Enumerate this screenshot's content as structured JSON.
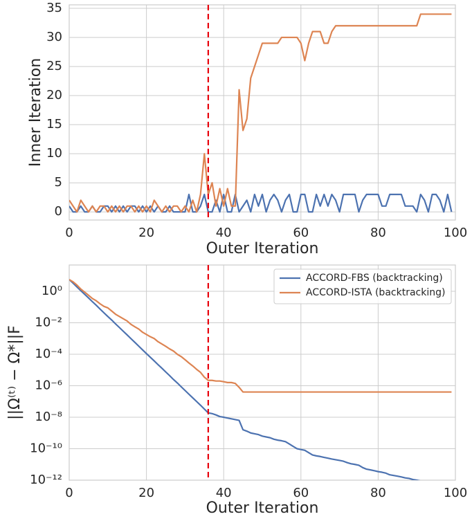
{
  "chart_data": [
    {
      "type": "line",
      "xlabel": "Outer Iteration",
      "ylabel": "Inner Iteration",
      "xlim": [
        0,
        100
      ],
      "ylim": [
        -1.4,
        35.6
      ],
      "xticks": [
        0,
        20,
        40,
        60,
        80,
        100
      ],
      "yticks": [
        0,
        5,
        10,
        15,
        20,
        25,
        30,
        35
      ],
      "grid": true,
      "vline": {
        "x": 36,
        "color": "#e8000b"
      },
      "x": [
        0,
        1,
        2,
        3,
        4,
        5,
        6,
        7,
        8,
        9,
        10,
        11,
        12,
        13,
        14,
        15,
        16,
        17,
        18,
        19,
        20,
        21,
        22,
        23,
        24,
        25,
        26,
        27,
        28,
        29,
        30,
        31,
        32,
        33,
        34,
        35,
        36,
        37,
        38,
        39,
        40,
        41,
        42,
        43,
        44,
        45,
        46,
        47,
        48,
        49,
        50,
        51,
        52,
        53,
        54,
        55,
        56,
        57,
        58,
        59,
        60,
        61,
        62,
        63,
        64,
        65,
        66,
        67,
        68,
        69,
        70,
        71,
        72,
        73,
        74,
        75,
        76,
        77,
        78,
        79,
        80,
        81,
        82,
        83,
        84,
        85,
        86,
        87,
        88,
        89,
        90,
        91,
        92,
        93,
        94,
        95,
        96,
        97,
        98,
        99
      ],
      "series": [
        {
          "color": "#4c72b0",
          "values": [
            1,
            0,
            0,
            1,
            0,
            0,
            1,
            0,
            0,
            1,
            1,
            0,
            1,
            0,
            1,
            0,
            1,
            1,
            0,
            1,
            0,
            1,
            0,
            1,
            0,
            0,
            1,
            0,
            0,
            0,
            0,
            3,
            0,
            0,
            1,
            3,
            0,
            0,
            2,
            0,
            3,
            0,
            0,
            3,
            0,
            1,
            2,
            0,
            3,
            1,
            3,
            0,
            2,
            3,
            2,
            0,
            2,
            3,
            0,
            0,
            3,
            3,
            0,
            0,
            3,
            1,
            3,
            1,
            3,
            2,
            0,
            3,
            3,
            3,
            3,
            0,
            2,
            3,
            3,
            3,
            3,
            1,
            1,
            3,
            3,
            3,
            3,
            1,
            1,
            1,
            0,
            3,
            2,
            0,
            3,
            3,
            2,
            0,
            3,
            0
          ]
        },
        {
          "color": "#dd8452",
          "values": [
            2,
            1,
            0,
            2,
            1,
            0,
            1,
            0,
            1,
            1,
            0,
            1,
            0,
            1,
            0,
            1,
            1,
            0,
            1,
            0,
            1,
            0,
            2,
            1,
            0,
            1,
            0,
            1,
            1,
            0,
            1,
            0,
            2,
            0,
            3,
            10,
            3,
            5,
            1,
            4,
            1,
            4,
            1,
            1,
            21,
            14,
            16,
            23,
            25,
            27,
            29,
            29,
            29,
            29,
            29,
            30,
            30,
            30,
            30,
            30,
            29,
            26,
            29,
            31,
            31,
            31,
            29,
            29,
            31,
            32,
            32,
            32,
            32,
            32,
            32,
            32,
            32,
            32,
            32,
            32,
            32,
            32,
            32,
            32,
            32,
            32,
            32,
            32,
            32,
            32,
            32,
            34,
            34,
            34,
            34,
            34,
            34,
            34,
            34,
            34
          ]
        }
      ]
    },
    {
      "type": "line",
      "xlabel": "Outer Iteration",
      "ylabel": "||Ω⁽ᵗ⁾ − Ω*||F",
      "xlim": [
        0,
        100
      ],
      "ylim": [
        1e-12,
        47
      ],
      "log_y": true,
      "xticks": [
        0,
        20,
        40,
        60,
        80,
        100
      ],
      "yticks": [
        {
          "value": 1e-12,
          "label": "10⁻¹²"
        },
        {
          "value": 1e-10,
          "label": "10⁻¹⁰"
        },
        {
          "value": 1e-08,
          "label": "10⁻⁸"
        },
        {
          "value": 1e-06,
          "label": "10⁻⁶"
        },
        {
          "value": 0.0001,
          "label": "10⁻⁴"
        },
        {
          "value": 0.01,
          "label": "10⁻²"
        },
        {
          "value": 1,
          "label": "10⁰"
        }
      ],
      "grid": true,
      "legend": "upper right",
      "vline": {
        "x": 36,
        "color": "#e8000b"
      },
      "x": [
        0,
        1,
        2,
        3,
        4,
        5,
        6,
        7,
        8,
        9,
        10,
        11,
        12,
        13,
        14,
        15,
        16,
        17,
        18,
        19,
        20,
        21,
        22,
        23,
        24,
        25,
        26,
        27,
        28,
        29,
        30,
        31,
        32,
        33,
        34,
        35,
        36,
        37,
        38,
        39,
        40,
        41,
        42,
        43,
        44,
        45,
        46,
        47,
        48,
        49,
        50,
        51,
        52,
        53,
        54,
        55,
        56,
        57,
        58,
        59,
        60,
        61,
        62,
        63,
        64,
        65,
        66,
        67,
        68,
        69,
        70,
        71,
        72,
        73,
        74,
        75,
        76,
        77,
        78,
        79,
        80,
        81,
        82,
        83,
        84,
        85,
        86,
        87,
        88,
        89,
        90,
        91,
        92,
        93,
        94,
        95,
        96,
        97,
        98,
        99
      ],
      "series": [
        {
          "name": "ACCORD-FBS (backtracking)",
          "color": "#4c72b0",
          "values": [
            5.6,
            3.3,
            1.9,
            1.1,
            0.65,
            0.38,
            0.22,
            0.13,
            0.074,
            0.043,
            0.025,
            0.015,
            0.0085,
            0.005,
            0.0029,
            0.0017,
            0.00098,
            0.00057,
            0.00033,
            0.00019,
            0.00011,
            6.5e-05,
            3.8e-05,
            2.2e-05,
            1.3e-05,
            7.5e-06,
            4.4e-06,
            2.5e-06,
            1.5e-06,
            8.6e-07,
            5e-07,
            2.9e-07,
            1.7e-07,
            9.9e-08,
            5.8e-08,
            3.3e-08,
            1.9e-08,
            1.7e-08,
            1.4e-08,
            1.1e-08,
            1e-08,
            8.9e-09,
            7.9e-09,
            7.1e-09,
            6.3e-09,
            1.6e-09,
            1.3e-09,
            1e-09,
            8.9e-10,
            7.9e-10,
            6.3e-10,
            5.6e-10,
            5e-10,
            4e-10,
            3.5e-10,
            3.2e-10,
            2.8e-10,
            2e-10,
            1.4e-10,
            1e-10,
            8.9e-11,
            7.9e-11,
            5.6e-11,
            4e-11,
            3.5e-11,
            3.2e-11,
            2.8e-11,
            2.5e-11,
            2.2e-11,
            2e-11,
            1.8e-11,
            1.6e-11,
            1.3e-11,
            1.1e-11,
            1e-11,
            8.9e-12,
            6.3e-12,
            5e-12,
            4.5e-12,
            4e-12,
            3.5e-12,
            3.2e-12,
            2.8e-12,
            2.2e-12,
            2e-12,
            1.8e-12,
            1.6e-12,
            1.4e-12,
            1.3e-12,
            1.1e-12,
            1e-12,
            8.9e-13,
            7.9e-13,
            7.1e-13,
            6.3e-13,
            5.6e-13,
            5e-13,
            4.5e-13,
            4e-13,
            3.5e-13
          ]
        },
        {
          "name": "ACCORD-ISTA (backtracking)",
          "color": "#dd8452",
          "values": [
            5.6,
            4.0,
            2.5,
            1.4,
            0.89,
            0.56,
            0.35,
            0.25,
            0.16,
            0.11,
            0.089,
            0.056,
            0.035,
            0.025,
            0.018,
            0.013,
            0.0079,
            0.0056,
            0.004,
            0.0025,
            0.0018,
            0.0013,
            0.001,
            0.00063,
            0.00045,
            0.00032,
            0.00022,
            0.00016,
            0.0001,
            7.1e-05,
            4.5e-05,
            2.8e-05,
            1.8e-05,
            1.1e-05,
            7.1e-06,
            3.5e-06,
            2.2e-06,
            2.2e-06,
            2e-06,
            2e-06,
            1.8e-06,
            1.6e-06,
            1.6e-06,
            1.4e-06,
            7.9e-07,
            4e-07,
            4e-07,
            4e-07,
            4e-07,
            4e-07,
            4e-07,
            4e-07,
            4e-07,
            4e-07,
            4e-07,
            4e-07,
            4e-07,
            4e-07,
            4e-07,
            4e-07,
            4e-07,
            4e-07,
            4e-07,
            4e-07,
            4e-07,
            4e-07,
            4e-07,
            4e-07,
            4e-07,
            4e-07,
            4e-07,
            4e-07,
            4e-07,
            4e-07,
            4e-07,
            4e-07,
            4e-07,
            4e-07,
            4e-07,
            4e-07,
            4e-07,
            4e-07,
            4e-07,
            4e-07,
            4e-07,
            4e-07,
            4e-07,
            4e-07,
            4e-07,
            4e-07,
            4e-07,
            4e-07,
            4e-07,
            4e-07,
            4e-07,
            4e-07,
            4e-07,
            4e-07,
            4e-07,
            4e-07
          ]
        }
      ]
    }
  ]
}
